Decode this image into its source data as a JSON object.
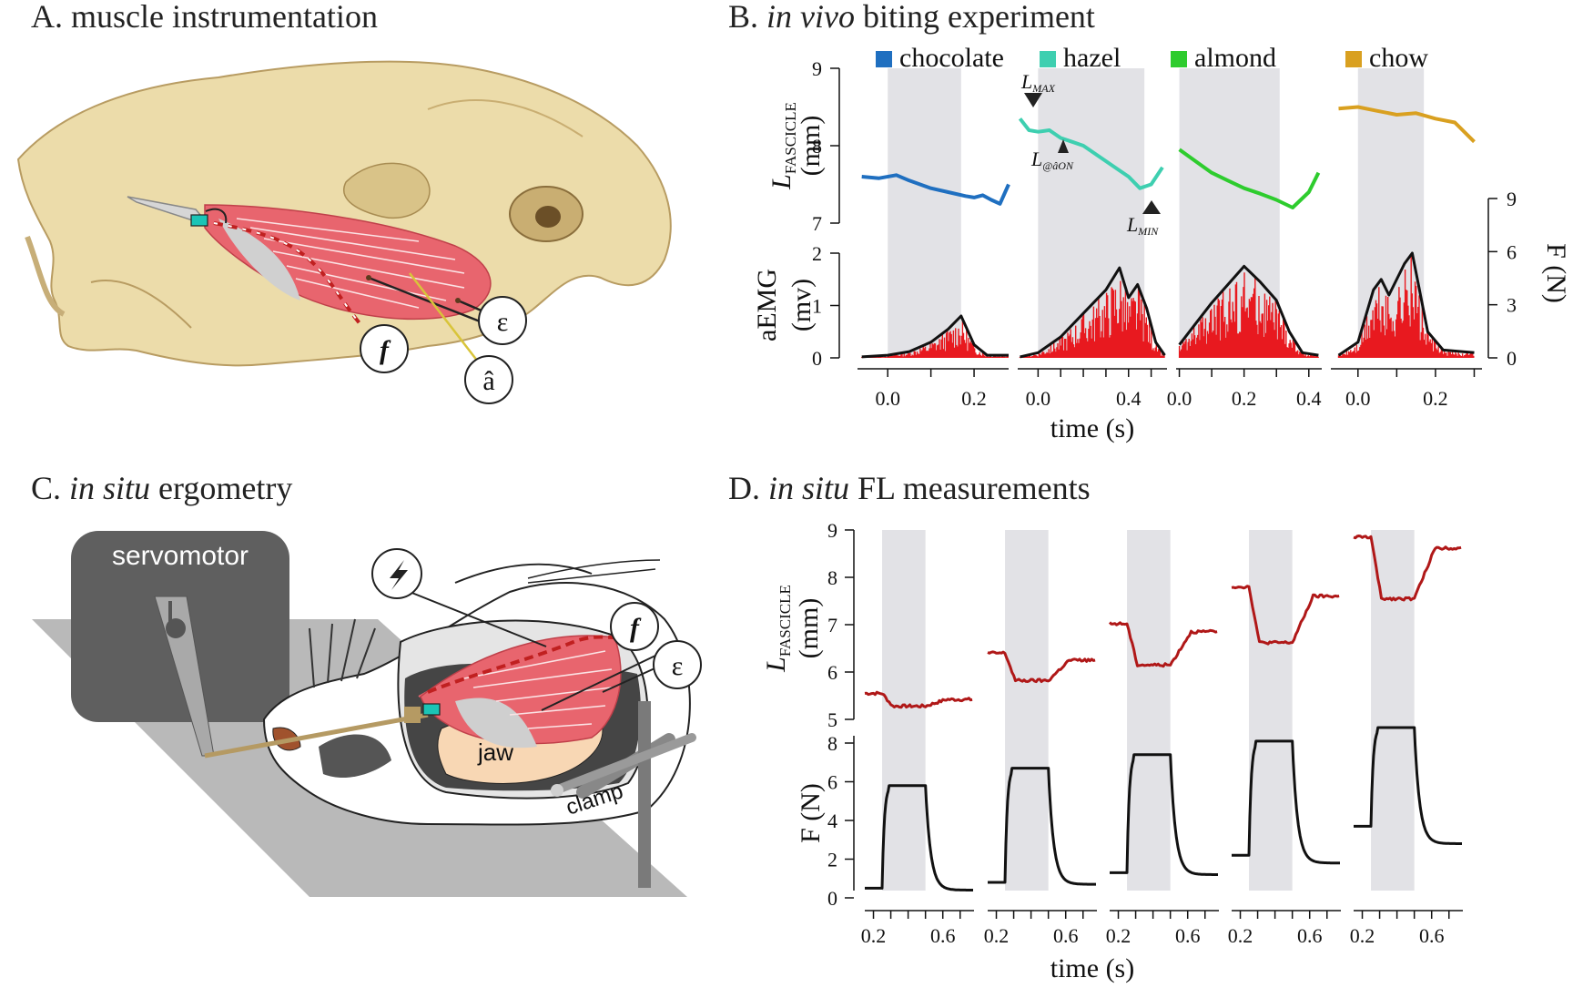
{
  "panels": {
    "a": {
      "title_prefix": "A. ",
      "title": "muscle instrumentation",
      "markers": {
        "force": "f",
        "strain": "ε",
        "emg": "â"
      }
    },
    "b": {
      "title_prefix": "B. ",
      "title_italic": "in vivo",
      "title_rest": " biting experiment"
    },
    "c": {
      "title_prefix": "C. ",
      "title_italic": "in situ",
      "title_rest": " ergometry",
      "labels": {
        "servomotor": "servomotor",
        "jaw": "jaw",
        "clamp": "clamp",
        "force": "f",
        "strain": "ε"
      }
    },
    "d": {
      "title_prefix": "D. ",
      "title_italic": "in situ",
      "title_rest": " FL measurements"
    }
  },
  "chart_data": [
    {
      "panel": "B",
      "type": "line",
      "legend": [
        {
          "name": "chocolate",
          "color": "#1f6fc0"
        },
        {
          "name": "hazel",
          "color": "#3ecfb0"
        },
        {
          "name": "almond",
          "color": "#2ecc2e"
        },
        {
          "name": "chow",
          "color": "#d9a020"
        }
      ],
      "ylabel_top": "L",
      "ylabel_top_sub": "FASCICLE",
      "ylabel_top_unit": "(mm)",
      "ylim_top": [
        7,
        9
      ],
      "yticks_top": [
        "9",
        "8",
        "7"
      ],
      "ylabel_bottom": "aEMG",
      "ylabel_bottom_unit": "(mv)",
      "ylim_bottom": [
        0,
        2
      ],
      "yticks_bottom": [
        "2",
        "1",
        "0"
      ],
      "ylabel_right": "F (N)",
      "yticks_right": [
        "9",
        "6",
        "3",
        "0"
      ],
      "xlabel": "time (s)",
      "annotations": {
        "lmax": "L",
        "lmax_sub": "MAX",
        "lon": "L",
        "lon_sub": "@âON",
        "lmin": "L",
        "lmin_sub": "MIN"
      },
      "series": [
        {
          "name": "chocolate",
          "color": "#1f6fc0",
          "xticks": [
            "0.0",
            "0.2"
          ],
          "fascicle": [
            [
              -0.06,
              7.6
            ],
            [
              -0.02,
              7.58
            ],
            [
              0.02,
              7.62
            ],
            [
              0.05,
              7.55
            ],
            [
              0.1,
              7.45
            ],
            [
              0.14,
              7.4
            ],
            [
              0.18,
              7.35
            ],
            [
              0.2,
              7.33
            ],
            [
              0.22,
              7.36
            ],
            [
              0.24,
              7.3
            ],
            [
              0.26,
              7.25
            ],
            [
              0.28,
              7.5
            ]
          ],
          "aemg_envelope": [
            [
              -0.06,
              0.02
            ],
            [
              0.0,
              0.05
            ],
            [
              0.05,
              0.12
            ],
            [
              0.1,
              0.3
            ],
            [
              0.14,
              0.55
            ],
            [
              0.17,
              0.8
            ],
            [
              0.2,
              0.25
            ],
            [
              0.23,
              0.05
            ],
            [
              0.28,
              0.05
            ]
          ]
        },
        {
          "name": "hazel",
          "color": "#3ecfb0",
          "xticks": [
            "0.0",
            "0.4"
          ],
          "fascicle": [
            [
              -0.08,
              8.35
            ],
            [
              -0.04,
              8.2
            ],
            [
              0.0,
              8.18
            ],
            [
              0.05,
              8.2
            ],
            [
              0.1,
              8.1
            ],
            [
              0.15,
              8.05
            ],
            [
              0.2,
              8.0
            ],
            [
              0.25,
              7.9
            ],
            [
              0.3,
              7.8
            ],
            [
              0.35,
              7.7
            ],
            [
              0.4,
              7.6
            ],
            [
              0.45,
              7.45
            ],
            [
              0.5,
              7.5
            ],
            [
              0.55,
              7.72
            ]
          ],
          "aemg_envelope": [
            [
              -0.08,
              0.02
            ],
            [
              0.0,
              0.1
            ],
            [
              0.1,
              0.4
            ],
            [
              0.2,
              0.85
            ],
            [
              0.3,
              1.3
            ],
            [
              0.36,
              1.72
            ],
            [
              0.4,
              1.15
            ],
            [
              0.44,
              1.4
            ],
            [
              0.48,
              0.95
            ],
            [
              0.52,
              0.3
            ],
            [
              0.56,
              0.05
            ]
          ]
        },
        {
          "name": "almond",
          "color": "#2ecc2e",
          "xticks": [
            "0.0",
            "0.2",
            "0.4"
          ],
          "fascicle": [
            [
              0.0,
              7.95
            ],
            [
              0.05,
              7.8
            ],
            [
              0.1,
              7.65
            ],
            [
              0.15,
              7.55
            ],
            [
              0.2,
              7.45
            ],
            [
              0.25,
              7.38
            ],
            [
              0.3,
              7.3
            ],
            [
              0.35,
              7.2
            ],
            [
              0.4,
              7.4
            ],
            [
              0.43,
              7.65
            ]
          ],
          "aemg_envelope": [
            [
              0.0,
              0.25
            ],
            [
              0.05,
              0.65
            ],
            [
              0.1,
              1.05
            ],
            [
              0.15,
              1.4
            ],
            [
              0.2,
              1.75
            ],
            [
              0.25,
              1.45
            ],
            [
              0.3,
              1.1
            ],
            [
              0.34,
              0.5
            ],
            [
              0.38,
              0.1
            ],
            [
              0.43,
              0.05
            ]
          ]
        },
        {
          "name": "chow",
          "color": "#d9a020",
          "xticks": [
            "0.0",
            "0.2"
          ],
          "fascicle": [
            [
              -0.05,
              8.48
            ],
            [
              0.0,
              8.5
            ],
            [
              0.05,
              8.45
            ],
            [
              0.1,
              8.4
            ],
            [
              0.15,
              8.42
            ],
            [
              0.2,
              8.35
            ],
            [
              0.25,
              8.3
            ],
            [
              0.3,
              8.05
            ]
          ],
          "aemg_envelope": [
            [
              -0.05,
              0.05
            ],
            [
              0.0,
              0.3
            ],
            [
              0.04,
              1.3
            ],
            [
              0.06,
              1.5
            ],
            [
              0.08,
              1.2
            ],
            [
              0.12,
              1.8
            ],
            [
              0.14,
              2.0
            ],
            [
              0.18,
              0.5
            ],
            [
              0.22,
              0.15
            ],
            [
              0.3,
              0.1
            ]
          ]
        }
      ]
    },
    {
      "panel": "D",
      "type": "line",
      "ylabel_top": "L",
      "ylabel_top_sub": "FASCICLE",
      "ylabel_top_unit": "(mm)",
      "ylim_top": [
        5,
        9
      ],
      "yticks_top": [
        "9",
        "8",
        "7",
        "6",
        "5"
      ],
      "ylabel_bottom": "F (N)",
      "ylim_bottom": [
        0,
        8
      ],
      "yticks_bottom": [
        "8",
        "6",
        "4",
        "2",
        "0"
      ],
      "xlabel": "time (s)",
      "series": [
        {
          "xticks": [
            "0.2",
            "0.6"
          ],
          "fascicle_rest": 5.55,
          "fascicle_min": 5.28,
          "fascicle_end": 5.42,
          "force_rest": 0.5,
          "force_peak": 5.8,
          "force_end": 0.4
        },
        {
          "xticks": [
            "0.2",
            "0.6"
          ],
          "fascicle_rest": 6.4,
          "fascicle_min": 5.82,
          "fascicle_end": 6.25,
          "force_rest": 0.8,
          "force_peak": 6.7,
          "force_end": 0.7
        },
        {
          "xticks": [
            "0.2",
            "0.6"
          ],
          "fascicle_rest": 7.02,
          "fascicle_min": 6.15,
          "fascicle_end": 6.85,
          "force_rest": 1.3,
          "force_peak": 7.4,
          "force_end": 1.2
        },
        {
          "xticks": [
            "0.2",
            "0.6"
          ],
          "fascicle_rest": 7.8,
          "fascicle_min": 6.62,
          "fascicle_end": 7.6,
          "force_rest": 2.2,
          "force_peak": 8.1,
          "force_end": 1.8
        },
        {
          "xticks": [
            "0.2",
            "0.6"
          ],
          "fascicle_rest": 8.85,
          "fascicle_min": 7.55,
          "fascicle_end": 8.62,
          "force_rest": 3.7,
          "force_peak": 8.8,
          "force_end": 2.8
        }
      ]
    }
  ]
}
